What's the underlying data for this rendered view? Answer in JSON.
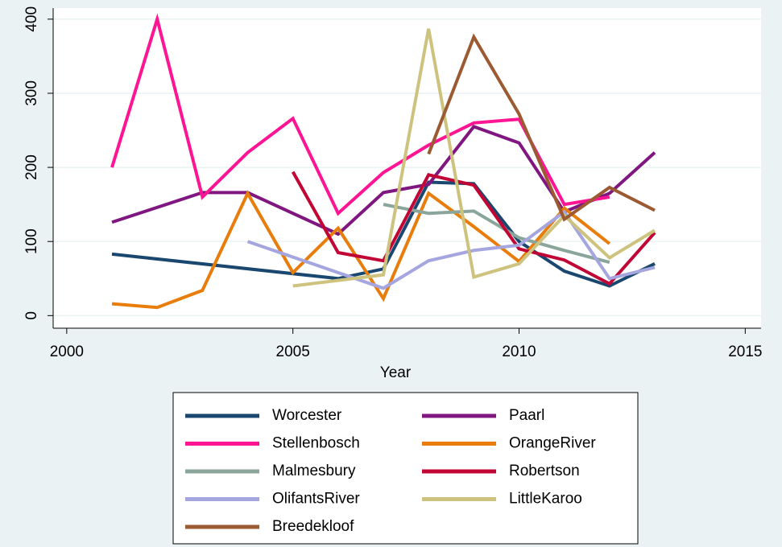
{
  "chart_data": {
    "type": "line",
    "x_label": "Year",
    "xlim": [
      1999.7,
      2015.35
    ],
    "xticks": [
      2000,
      2005,
      2010,
      2015
    ],
    "ylim": [
      -17,
      415
    ],
    "yticks": [
      0,
      100,
      200,
      300,
      400
    ],
    "grid": true,
    "series": [
      {
        "name": "Worcester",
        "color": "#1a476f",
        "x": [
          2001,
          2006,
          2007,
          2008,
          2009,
          2010,
          2011,
          2012,
          2013
        ],
        "values": [
          83,
          50,
          63,
          180,
          178,
          100,
          60,
          40,
          70
        ]
      },
      {
        "name": "Paarl",
        "color": "#80167f",
        "x": [
          2001,
          2003,
          2004,
          2006,
          2007,
          2008,
          2009,
          2010,
          2011,
          2012,
          2013
        ],
        "values": [
          126,
          166,
          166,
          110,
          166,
          177,
          255,
          233,
          140,
          165,
          220
        ]
      },
      {
        "name": "Stellenbosch",
        "color": "#ff1493",
        "x": [
          2001,
          2002,
          2003,
          2004,
          2005,
          2006,
          2007,
          2008,
          2009,
          2010,
          2011,
          2012
        ],
        "values": [
          200,
          400,
          160,
          220,
          266,
          138,
          193,
          230,
          260,
          265,
          150,
          160
        ]
      },
      {
        "name": "OrangeRiver",
        "color": "#e87d0c",
        "x": [
          2001,
          2002,
          2003,
          2004,
          2005,
          2006,
          2007,
          2008,
          2009,
          2010,
          2011,
          2012
        ],
        "values": [
          16,
          11,
          34,
          165,
          58,
          118,
          23,
          165,
          120,
          73,
          145,
          97
        ]
      },
      {
        "name": "Malmesbury",
        "color": "#8aa59a",
        "x": [
          2007,
          2008,
          2009,
          2010,
          2011,
          2012
        ],
        "values": [
          150,
          138,
          141,
          105,
          88,
          72
        ]
      },
      {
        "name": "Robertson",
        "color": "#c10534",
        "x": [
          2005,
          2006,
          2007,
          2008,
          2009,
          2010,
          2011,
          2012,
          2013
        ],
        "values": [
          194,
          85,
          74,
          190,
          176,
          90,
          75,
          43,
          112
        ]
      },
      {
        "name": "OlifantsRiver",
        "color": "#a5a5e0",
        "x": [
          2004,
          2007,
          2008,
          2009,
          2010,
          2011,
          2012,
          2013
        ],
        "values": [
          100,
          37,
          74,
          88,
          95,
          140,
          50,
          65
        ]
      },
      {
        "name": "LittleKaroo",
        "color": "#cdc37f",
        "x": [
          2005,
          2007,
          2008,
          2009,
          2010,
          2011,
          2012,
          2013
        ],
        "values": [
          40,
          55,
          387,
          52,
          70,
          135,
          78,
          115
        ]
      },
      {
        "name": "Breedekloof",
        "color": "#9c5a33",
        "x": [
          2008,
          2009,
          2010,
          2011,
          2012,
          2013
        ],
        "values": [
          218,
          376,
          272,
          130,
          173,
          142
        ]
      }
    ]
  }
}
